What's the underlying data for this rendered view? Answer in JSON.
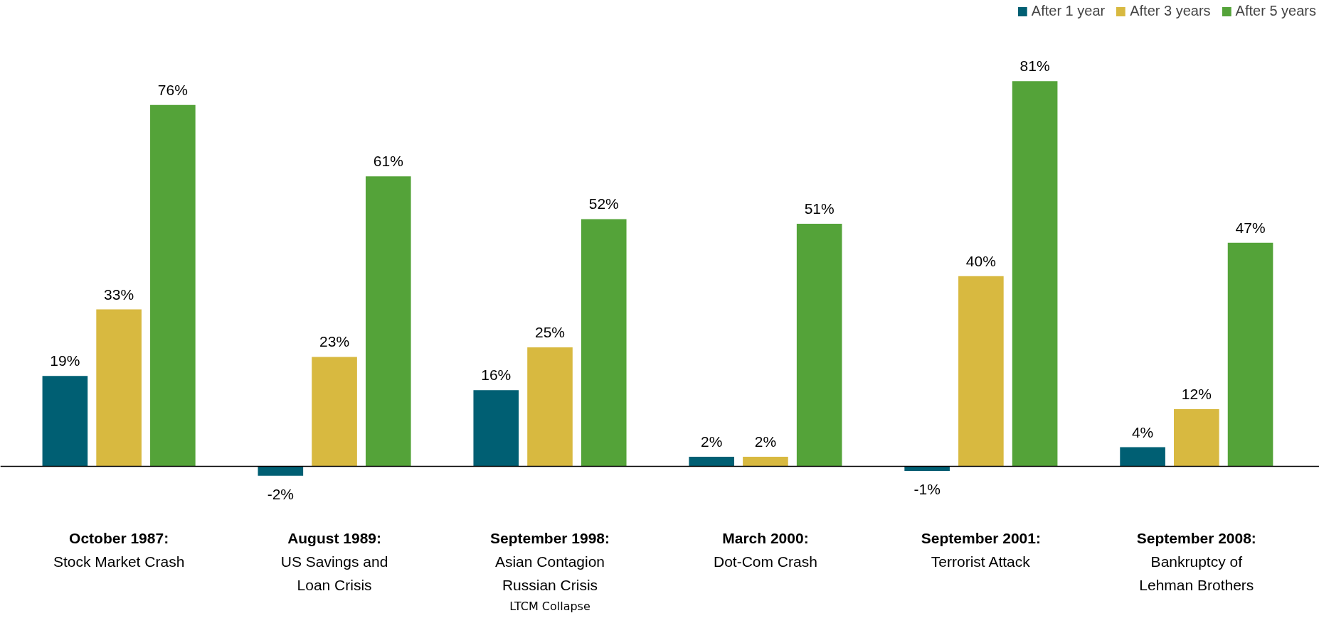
{
  "chart_data": {
    "type": "bar",
    "categories": [
      "October 1987:\nStock Market Crash",
      "August 1989:\nUS Savings and\nLoan Crisis",
      "September 1998:\nAsian Contagion\nRussian Crisis\nLTCM Collapse",
      "March 2000:\nDot-Com Crash",
      "September 2001:\nTerrorist Attack",
      "September 2008:\nBankruptcy of\nLehman Brothers"
    ],
    "series": [
      {
        "name": "After 1 year",
        "color": "#005f73",
        "values": [
          19,
          -2,
          16,
          2,
          -1,
          4
        ],
        "value_labels": [
          "19%",
          "-2%",
          "16%",
          "2%",
          "-1%",
          "4%"
        ]
      },
      {
        "name": "After 3 years",
        "color": "#d8b940",
        "values": [
          33,
          23,
          25,
          2,
          40,
          12
        ],
        "value_labels": [
          "33%",
          "23%",
          "25%",
          "2%",
          "40%",
          "12%"
        ]
      },
      {
        "name": "After 5 years",
        "color": "#54a339",
        "values": [
          76,
          61,
          52,
          51,
          81,
          47
        ],
        "value_labels": [
          "76%",
          "61%",
          "52%",
          "51%",
          "81%",
          "47%"
        ]
      }
    ],
    "legend": "top right",
    "grid": false,
    "tick_labels": false
  }
}
